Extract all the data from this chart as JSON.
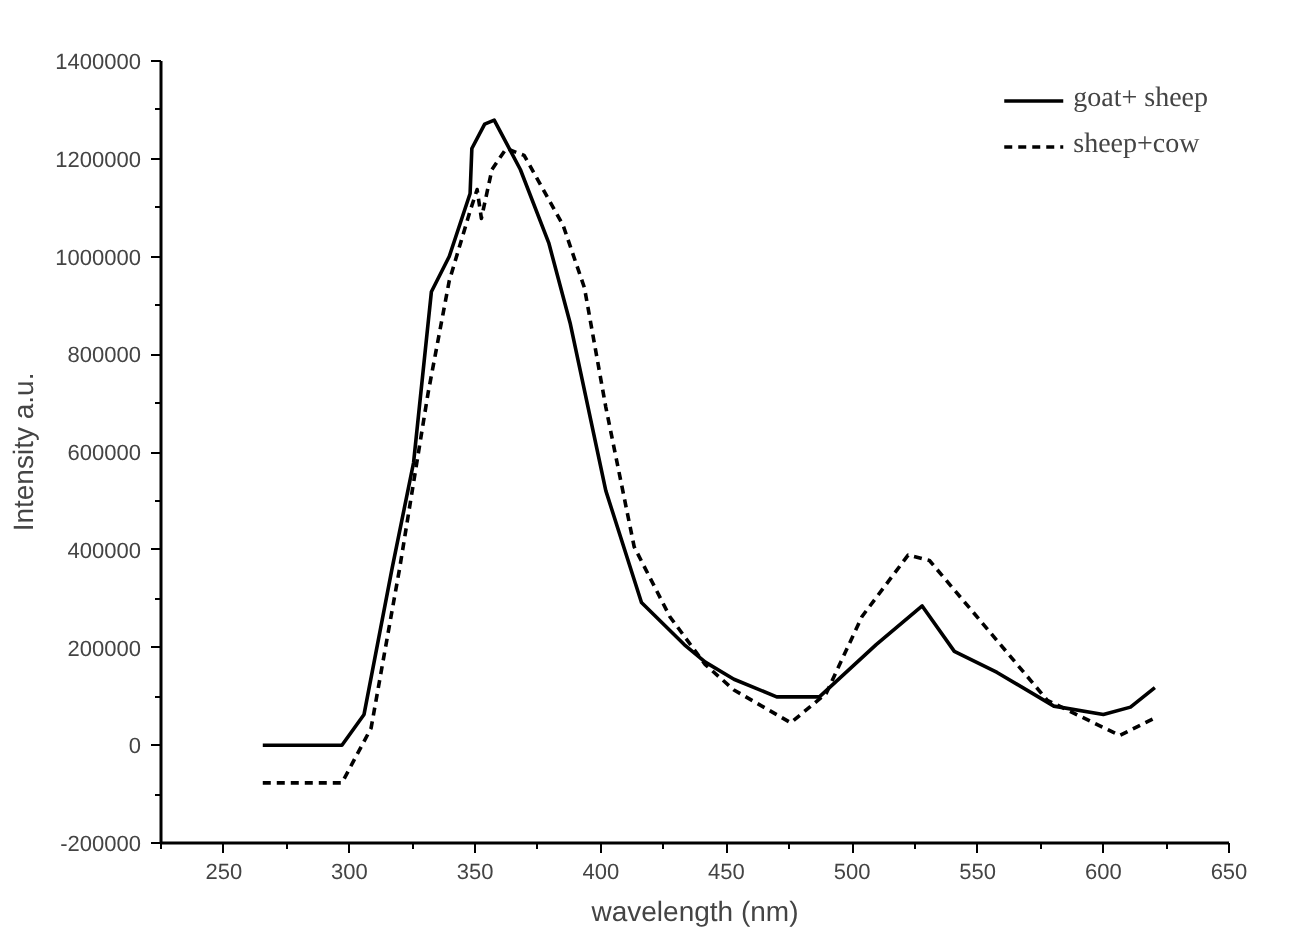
{
  "chart_data": {
    "type": "line",
    "xlabel": "wavelength (nm)",
    "ylabel": "Intensity a.u.",
    "xlim": [
      225,
      650
    ],
    "xticks": [
      250,
      300,
      350,
      400,
      450,
      500,
      550,
      600,
      650
    ],
    "ylim": [
      -200000,
      1400000
    ],
    "yticks": [
      -200000,
      0,
      200000,
      400000,
      600000,
      800000,
      1000000,
      1200000,
      1400000
    ],
    "grid": false,
    "legend": "top right",
    "marker": "none",
    "series": [
      {
        "name": "goat+ sheep",
        "color": "#000000",
        "line_style": "solid",
        "x": [
          265.5,
          297,
          305.8,
          317,
          325.5,
          332.6,
          339.7,
          348,
          348.7,
          353.8,
          357.6,
          368,
          379.3,
          387.8,
          402,
          416.2,
          433.2,
          441.6,
          453,
          470,
          487,
          509.6,
          527.9,
          540.7,
          557.7,
          580.3,
          600,
          610.8,
          620.5
        ],
        "values": [
          0,
          0,
          63000,
          363000,
          578000,
          928000,
          1000000,
          1129000,
          1221000,
          1271000,
          1279000,
          1178000,
          1028000,
          864000,
          521000,
          292000,
          206000,
          170000,
          135000,
          99000,
          99000,
          206000,
          285000,
          192000,
          149000,
          80000,
          63000,
          78000,
          118000
        ]
      },
      {
        "name": "sheep+cow",
        "color": "#000000",
        "line_style": "dashed",
        "x": [
          265.5,
          297,
          308.6,
          320,
          331.3,
          339.7,
          348,
          350.8,
          352.5,
          356.7,
          362.4,
          369.5,
          385,
          393.5,
          402,
          413.3,
          427.5,
          441.6,
          453,
          475.6,
          489.7,
          503.9,
          522.3,
          530.8,
          552,
          577.7,
          606.5,
          620.5
        ],
        "values": [
          -77000,
          -77000,
          35000,
          363000,
          721000,
          950000,
          1093000,
          1137000,
          1078000,
          1178000,
          1221000,
          1207000,
          1064000,
          936000,
          692000,
          406000,
          263000,
          165000,
          113000,
          46000,
          106000,
          263000,
          389000,
          378000,
          249000,
          92000,
          20000,
          56000
        ]
      }
    ]
  }
}
